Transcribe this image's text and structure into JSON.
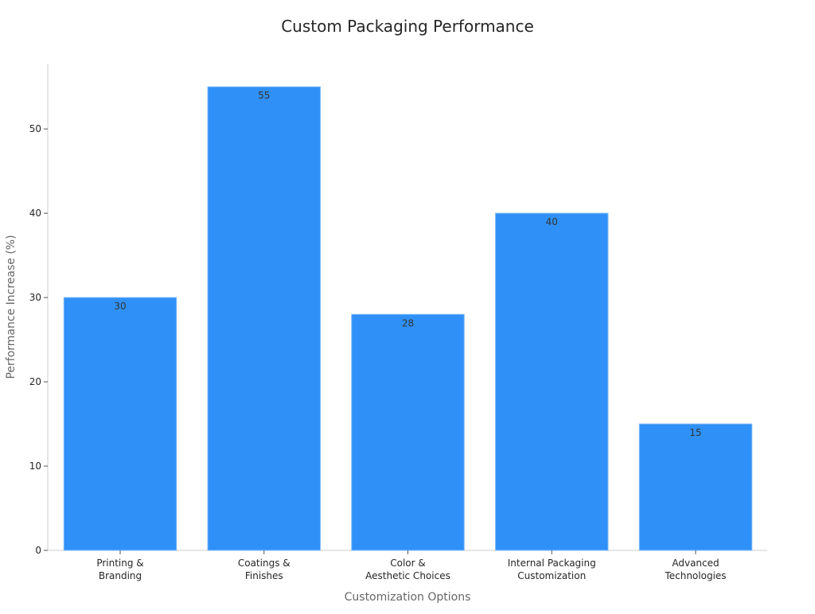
{
  "chart_data": {
    "type": "bar",
    "title": "Custom Packaging Performance",
    "xlabel": "Customization Options",
    "ylabel": "Performance Increase (%)",
    "categories": [
      [
        "Printing &",
        "Branding"
      ],
      [
        "Coatings &",
        "Finishes"
      ],
      [
        "Color &",
        "Aesthetic Choices"
      ],
      [
        "Internal Packaging",
        "Customization"
      ],
      [
        "Advanced",
        "Technologies"
      ]
    ],
    "values": [
      30,
      55,
      28,
      40,
      15
    ],
    "ylim": [
      0,
      57.75
    ],
    "yticks": [
      0,
      10,
      20,
      30,
      40,
      50
    ],
    "bar_color": "#2f91f8",
    "bar_edge_color": "#7fb9f5",
    "grid": false,
    "legend": "none"
  }
}
